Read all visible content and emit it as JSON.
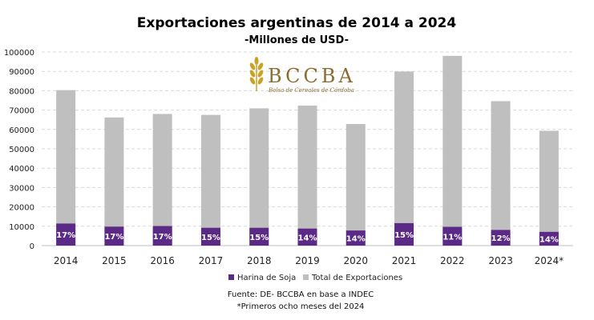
{
  "chart_data": {
    "type": "bar",
    "title": "Exportaciones argentinas de 2014 a 2024",
    "subtitle": "-Millones de USD-",
    "categories": [
      "2014",
      "2015",
      "2016",
      "2017",
      "2018",
      "2019",
      "2020",
      "2021",
      "2022",
      "2023",
      "2024*"
    ],
    "series": [
      {
        "name": "Total de Exportaciones",
        "color": "#bfbfbf",
        "values": [
          80300,
          66200,
          68000,
          67500,
          70900,
          72300,
          62800,
          89900,
          98000,
          74600,
          59300
        ]
      },
      {
        "name": "Harina de Soja",
        "color": "#5b2a86",
        "values": [
          11400,
          9800,
          10100,
          9200,
          9200,
          8800,
          7800,
          11600,
          9700,
          8100,
          7100
        ],
        "labels": [
          "17%",
          "17%",
          "17%",
          "15%",
          "15%",
          "14%",
          "14%",
          "15%",
          "11%",
          "12%",
          "14%"
        ]
      }
    ],
    "ylim": [
      0,
      100000
    ],
    "yticks": [
      "0",
      "10000",
      "20000",
      "30000",
      "40000",
      "50000",
      "60000",
      "70000",
      "80000",
      "90000",
      "100000"
    ],
    "grid": true,
    "legend_position": "bottom"
  },
  "logo": {
    "name": "BCCBA",
    "tagline": "Bolsa de Cereales de Córdoba",
    "color": "#8a6d2e",
    "icon": "wheat-icon"
  },
  "notes": {
    "source": "Fuente: DE- BCCBA en base a INDEC",
    "footnote": "*Primeros ocho meses del 2024"
  }
}
